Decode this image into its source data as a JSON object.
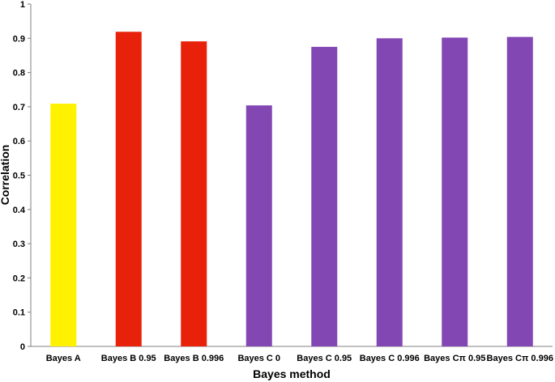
{
  "chart_data": {
    "type": "bar",
    "categories": [
      "Bayes A",
      "Bayes B 0.95",
      "Bayes B 0.996",
      "Bayes C 0",
      "Bayes C 0.95",
      "Bayes C 0.996",
      "Bayes Cπ 0.95",
      "Bayes Cπ 0.996"
    ],
    "values": [
      0.709,
      0.919,
      0.891,
      0.704,
      0.875,
      0.9,
      0.902,
      0.904
    ],
    "bar_colors": [
      "#FFF200",
      "#E8220A",
      "#E8220A",
      "#8347B3",
      "#8347B3",
      "#8347B3",
      "#8347B3",
      "#8347B3"
    ],
    "title": "",
    "xlabel": "Bayes method",
    "ylabel": "Correlation",
    "ylim": [
      0,
      1
    ],
    "yticks": [
      "0",
      "0.1",
      "0.2",
      "0.3",
      "0.4",
      "0.5",
      "0.6",
      "0.7",
      "0.8",
      "0.9",
      "1"
    ],
    "grid": false,
    "legend": "none"
  }
}
